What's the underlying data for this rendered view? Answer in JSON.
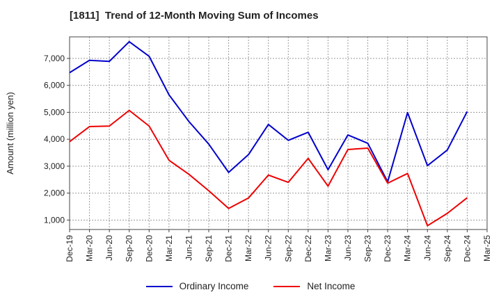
{
  "chart_data": {
    "type": "line",
    "title": "[1811]  Trend of 12-Month Moving Sum of Incomes",
    "xlabel": "",
    "ylabel": "Amount (million yen)",
    "categories": [
      "Dec-19",
      "Mar-20",
      "Jun-20",
      "Sep-20",
      "Dec-20",
      "Mar-21",
      "Jun-21",
      "Sep-21",
      "Dec-21",
      "Mar-22",
      "Jun-22",
      "Sep-22",
      "Dec-22",
      "Mar-23",
      "Jun-23",
      "Sep-23",
      "Dec-23",
      "Mar-24",
      "Jun-24",
      "Sep-24",
      "Dec-24",
      "Mar-25"
    ],
    "ylim": [
      650,
      7800
    ],
    "yticks": [
      1000,
      2000,
      3000,
      4000,
      5000,
      6000,
      7000
    ],
    "ytick_labels": [
      "1,000",
      "2,000",
      "3,000",
      "4,000",
      "5,000",
      "6,000",
      "7,000"
    ],
    "grid": true,
    "legend_position": "bottom-center",
    "series": [
      {
        "name": "Ordinary Income",
        "color": "#0000cc",
        "values": [
          6470,
          6930,
          6890,
          7620,
          7080,
          5650,
          4660,
          3820,
          2770,
          3430,
          4550,
          3960,
          4260,
          2870,
          4160,
          3850,
          2420,
          4990,
          3020,
          3600,
          5030,
          null
        ]
      },
      {
        "name": "Net Income",
        "color": "#ee0000",
        "values": [
          3910,
          4470,
          4490,
          5070,
          4490,
          3220,
          2700,
          2090,
          1430,
          1820,
          2670,
          2400,
          3290,
          2260,
          3620,
          3670,
          2370,
          2730,
          790,
          1250,
          1830,
          null
        ]
      }
    ]
  }
}
